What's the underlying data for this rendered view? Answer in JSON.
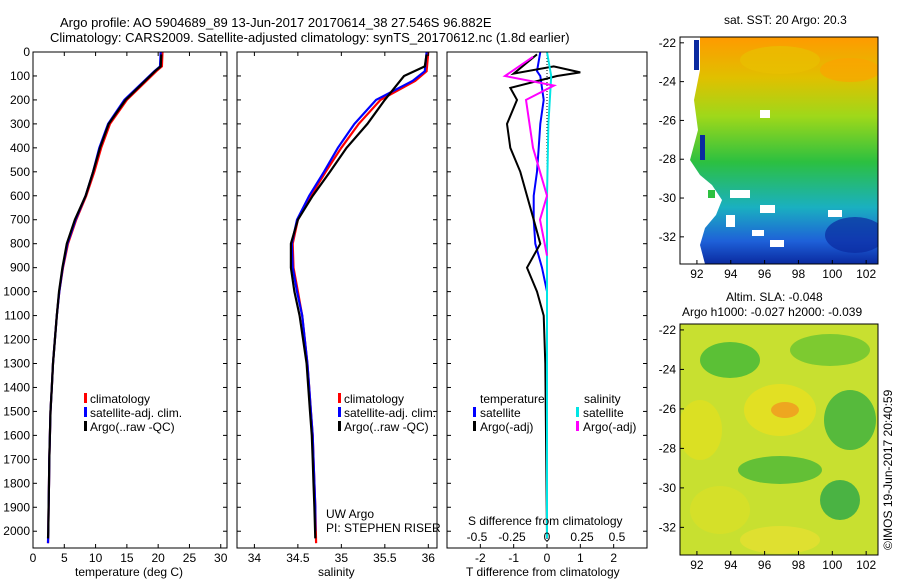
{
  "header": {
    "line1": "Argo profile: AO 5904689_89 13-Jun-2017 20170614_38 27.546S 96.882E",
    "line2": "Climatology: CARS2009. Satellite-adjusted climatology: synTS_20170612.nc (1.8d earlier)"
  },
  "colors": {
    "climatology": "#ff0000",
    "satellite_adj": "#0000ff",
    "argo": "#000000",
    "satellite_sal": "#00e5e5",
    "argo_sal": "#ff00ff"
  },
  "credit": "©IMOS 19-Jun-2017 20:40:59",
  "chart_data": [
    {
      "type": "line",
      "panel": "temperature",
      "xlabel": "temperature (deg C)",
      "xlim": [
        0,
        31
      ],
      "xticks": [
        0,
        5,
        10,
        15,
        20,
        25,
        30
      ],
      "ylim": [
        2070,
        0
      ],
      "yticks": [
        0,
        100,
        200,
        300,
        400,
        500,
        600,
        700,
        800,
        900,
        1000,
        1100,
        1200,
        1300,
        1400,
        1500,
        1600,
        1700,
        1800,
        1900,
        2000
      ],
      "legend": [
        "climatology",
        "satellite-adj. clim.",
        "Argo(..raw -QC)"
      ],
      "series": [
        {
          "name": "climatology",
          "color": "#ff0000",
          "x": [
            20.7,
            20.6,
            19.7,
            15.0,
            12.3,
            10.9,
            9.8,
            8.5,
            6.9,
            5.6,
            4.8,
            4.2,
            3.8,
            3.5,
            3.2,
            3.0,
            2.8,
            2.7,
            2.6,
            2.55,
            2.5,
            2.45,
            2.4
          ],
          "y": [
            0,
            60,
            80,
            200,
            300,
            400,
            500,
            600,
            700,
            800,
            900,
            1000,
            1100,
            1200,
            1300,
            1400,
            1500,
            1600,
            1700,
            1800,
            1900,
            2000,
            2050
          ]
        },
        {
          "name": "satellite-adj. clim.",
          "color": "#0000ff",
          "x": [
            20.4,
            20.3,
            19.4,
            14.6,
            12.0,
            10.6,
            9.6,
            8.4,
            6.8,
            5.5,
            4.75,
            4.2,
            3.8,
            3.5,
            3.2,
            3.0,
            2.8,
            2.7,
            2.6,
            2.55,
            2.5,
            2.45,
            2.4
          ],
          "y": [
            0,
            60,
            80,
            200,
            300,
            400,
            500,
            600,
            700,
            800,
            900,
            1000,
            1100,
            1200,
            1300,
            1400,
            1500,
            1600,
            1700,
            1800,
            1900,
            2000,
            2050
          ]
        },
        {
          "name": "Argo(..raw -QC)",
          "color": "#000000",
          "x": [
            20.5,
            20.4,
            19.5,
            14.8,
            12.1,
            10.7,
            9.6,
            8.4,
            6.7,
            5.4,
            4.7,
            4.15,
            3.8,
            3.5,
            3.2,
            3.0,
            2.8,
            2.7,
            2.6,
            2.55,
            2.5,
            2.45,
            2.4
          ],
          "y": [
            10,
            60,
            80,
            200,
            300,
            400,
            500,
            600,
            700,
            800,
            900,
            1000,
            1100,
            1200,
            1300,
            1400,
            1500,
            1600,
            1700,
            1800,
            1900,
            2000,
            2030
          ]
        }
      ]
    },
    {
      "type": "line",
      "panel": "salinity",
      "xlabel": "salinity",
      "xlim": [
        33.8,
        36.1
      ],
      "xticks": [
        34,
        34.5,
        35,
        35.5,
        36
      ],
      "xticklabels": [
        "34",
        "34.5",
        "35",
        "35.5",
        "36"
      ],
      "ylim": [
        2070,
        0
      ],
      "legend": [
        "climatology",
        "satellite-adj. clim.",
        "Argo(..raw -QC)"
      ],
      "annotation": [
        "UW Argo",
        "PI: STEPHEN RISER"
      ],
      "series": [
        {
          "name": "climatology",
          "color": "#ff0000",
          "x": [
            36.0,
            35.98,
            35.85,
            35.45,
            35.2,
            35.0,
            34.82,
            34.65,
            34.5,
            34.44,
            34.45,
            34.5,
            34.55,
            34.58,
            34.61,
            34.63,
            34.65,
            34.67,
            34.68,
            34.69,
            34.7,
            34.71
          ],
          "y": [
            0,
            80,
            120,
            200,
            300,
            400,
            500,
            600,
            700,
            800,
            900,
            1000,
            1100,
            1200,
            1300,
            1400,
            1500,
            1600,
            1700,
            1800,
            1900,
            2050
          ]
        },
        {
          "name": "satellite-adj. clim.",
          "color": "#0000ff",
          "x": [
            35.98,
            35.96,
            35.82,
            35.4,
            35.15,
            34.96,
            34.8,
            34.63,
            34.49,
            34.43,
            34.44,
            34.49,
            34.55,
            34.58,
            34.61,
            34.63,
            34.65,
            34.67,
            34.68,
            34.69,
            34.7,
            34.7
          ],
          "y": [
            0,
            80,
            120,
            200,
            300,
            400,
            500,
            600,
            700,
            800,
            900,
            1000,
            1100,
            1200,
            1300,
            1400,
            1500,
            1600,
            1700,
            1800,
            1900,
            2000
          ]
        },
        {
          "name": "Argo(..raw -QC)",
          "color": "#000000",
          "x": [
            35.98,
            35.96,
            35.72,
            35.5,
            35.3,
            35.06,
            34.87,
            34.67,
            34.5,
            34.42,
            34.42,
            34.46,
            34.52,
            34.56,
            34.6,
            34.62,
            34.64,
            34.66,
            34.67,
            34.68,
            34.69,
            34.7
          ],
          "y": [
            10,
            60,
            100,
            200,
            300,
            400,
            500,
            600,
            700,
            800,
            900,
            1000,
            1100,
            1200,
            1300,
            1400,
            1500,
            1600,
            1700,
            1800,
            1900,
            2030
          ]
        }
      ]
    },
    {
      "type": "line",
      "panel": "difference",
      "xlabel": "T difference from climatology",
      "x2label": "S difference from climatology",
      "xlim": [
        -3,
        3
      ],
      "xticks": [
        -2,
        -1,
        0,
        1,
        2
      ],
      "xticklabels": [
        "-2",
        "-1",
        "0",
        "1",
        "2"
      ],
      "x2ticks": [
        -0.5,
        -0.25,
        0,
        0.25,
        0.5
      ],
      "x2ticklabels": [
        "-0.5",
        "-0.25",
        "0",
        "0.25",
        "0.5"
      ],
      "ylim": [
        2070,
        0
      ],
      "legend_left_title": "temperature",
      "legend_right_title": "salinity",
      "legend": [
        "satellite",
        "Argo(-adj)",
        "satellite",
        "Argo(-adj)"
      ],
      "series": [
        {
          "name": "temperature satellite",
          "color": "#0000ff",
          "x": [
            -0.2,
            -0.3,
            -0.2,
            -0.1,
            -0.2,
            -0.25,
            -0.3,
            -0.4,
            -0.4,
            -0.35,
            -0.15,
            0.0,
            0.0,
            0.0,
            0.0,
            0.0
          ],
          "y": [
            0,
            80,
            100,
            200,
            300,
            400,
            500,
            600,
            700,
            800,
            900,
            1000,
            1200,
            1500,
            1800,
            2030
          ]
        },
        {
          "name": "temperature Argo(-adj)",
          "color": "#000000",
          "x": [
            -0.3,
            -1.0,
            0.2,
            1.0,
            0.3,
            -1.1,
            -0.9,
            -1.2,
            -1.1,
            -0.8,
            -0.6,
            -0.4,
            -0.2,
            -0.6,
            -0.3,
            -0.1,
            -0.05,
            0.0
          ],
          "y": [
            10,
            90,
            60,
            85,
            100,
            150,
            200,
            300,
            400,
            500,
            600,
            700,
            800,
            900,
            1000,
            1100,
            1300,
            2020
          ]
        },
        {
          "name": "salinity satellite",
          "color": "#00e5e5",
          "x": [
            0.0,
            0.03,
            0.01,
            0.0,
            0.0,
            0.0,
            0.0,
            0.0,
            0.0
          ],
          "y": [
            0,
            100,
            300,
            600,
            800,
            1000,
            1300,
            1700,
            2030
          ]
        },
        {
          "name": "salinity Argo(-adj)",
          "color": "#ff00ff",
          "x": [
            -0.1,
            -0.3,
            0.05,
            -0.15,
            -0.1,
            -0.05,
            0.0,
            -0.05,
            0.0
          ],
          "y": [
            20,
            100,
            140,
            200,
            400,
            500,
            600,
            700,
            850
          ]
        }
      ]
    },
    {
      "type": "heatmap",
      "panel": "sst-map",
      "title": "sat. SST: 20 Argo: 20.3",
      "xticks": [
        92,
        94,
        96,
        98,
        100,
        102
      ],
      "yticks": [
        -22,
        -24,
        -26,
        -28,
        -30,
        -32
      ],
      "xlim": [
        91,
        102.7
      ],
      "ylim": [
        -33.4,
        -21.7
      ]
    },
    {
      "type": "heatmap",
      "panel": "sla-map",
      "title": "Altim. SLA: -0.048",
      "subtitle": "Argo h1000: -0.027 h2000: -0.039",
      "xticks": [
        92,
        94,
        96,
        98,
        100,
        102
      ],
      "yticks": [
        -22,
        -24,
        -26,
        -28,
        -30,
        -32
      ],
      "xlim": [
        91,
        102.7
      ],
      "ylim": [
        -33.4,
        -21.7
      ]
    }
  ]
}
